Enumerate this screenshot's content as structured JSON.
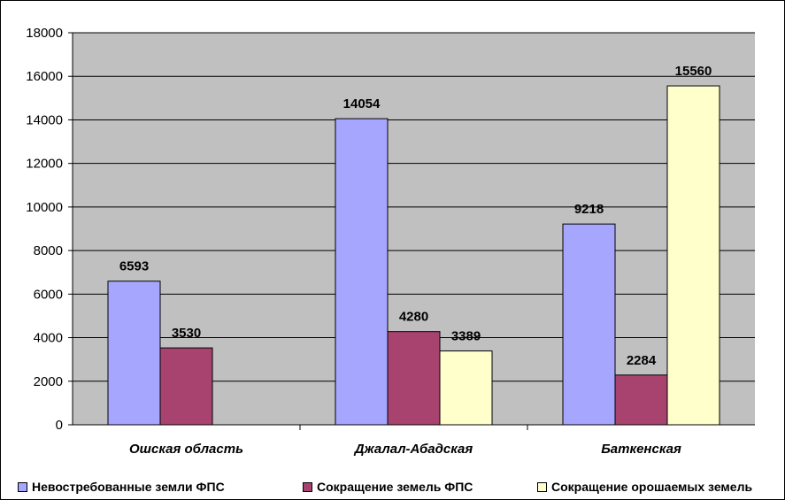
{
  "chart_data": {
    "type": "bar",
    "categories": [
      "Ошская область",
      "Джалал-Абадская",
      "Баткенская"
    ],
    "series": [
      {
        "name": "Невостребованные земли ФПС",
        "values": [
          6593,
          14054,
          9218
        ],
        "color": "#a6a6ff"
      },
      {
        "name": "Сокращение земель ФПС",
        "values": [
          3530,
          4280,
          2284
        ],
        "color": "#a8436f"
      },
      {
        "name": "Сокращение орошаемых земель",
        "values": [
          null,
          3389,
          15560
        ],
        "color": "#ffffcc"
      }
    ],
    "ylim": [
      0,
      18000
    ],
    "yticks": [
      0,
      2000,
      4000,
      6000,
      8000,
      10000,
      12000,
      14000,
      16000,
      18000
    ],
    "grid": true,
    "plot_background": "#c0c0c0",
    "legend_position": "bottom"
  }
}
